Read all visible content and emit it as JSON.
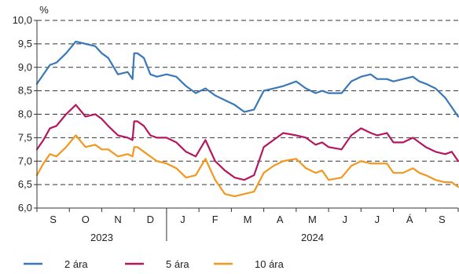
{
  "chart_data": {
    "type": "line",
    "unit": "%",
    "ylim": [
      6.0,
      10.0
    ],
    "yticks": [
      "6,0",
      "6,5",
      "7,0",
      "7,5",
      "8,0",
      "8,5",
      "9,0",
      "9,5",
      "10,0"
    ],
    "ytick_values": [
      6.0,
      6.5,
      7.0,
      7.5,
      8.0,
      8.5,
      9.0,
      9.5,
      10.0
    ],
    "grid": "dashed horizontal",
    "months": [
      "S",
      "O",
      "N",
      "D",
      "J",
      "F",
      "M",
      "A",
      "M",
      "J",
      "J",
      "Á",
      "S"
    ],
    "years": [
      {
        "label": "2023",
        "start_month": 0,
        "end_month": 3
      },
      {
        "label": "2024",
        "start_month": 4,
        "end_month": 12
      }
    ],
    "x_unit": "month index (0 = start of S 2023, 13 = end of S 2024)",
    "series": [
      {
        "name": "2 ára",
        "color": "#3a78b8",
        "x": [
          0,
          0.2,
          0.4,
          0.6,
          0.9,
          1.2,
          1.5,
          1.8,
          2.0,
          2.2,
          2.5,
          2.8,
          2.95,
          3.0,
          3.1,
          3.3,
          3.5,
          3.7,
          4.0,
          4.3,
          4.6,
          4.9,
          5.2,
          5.5,
          5.8,
          6.1,
          6.4,
          6.7,
          7.0,
          7.3,
          7.6,
          8.0,
          8.3,
          8.6,
          8.8,
          9.0,
          9.4,
          9.7,
          10.0,
          10.3,
          10.5,
          10.8,
          11.0,
          11.3,
          11.6,
          11.8,
          12.0,
          12.3,
          12.6,
          12.8,
          13.0
        ],
        "values": [
          8.65,
          8.85,
          9.05,
          9.1,
          9.3,
          9.55,
          9.5,
          9.45,
          9.3,
          9.2,
          8.85,
          8.9,
          8.75,
          9.3,
          9.3,
          9.2,
          8.85,
          8.8,
          8.85,
          8.8,
          8.6,
          8.45,
          8.55,
          8.4,
          8.3,
          8.2,
          8.05,
          8.1,
          8.5,
          8.55,
          8.6,
          8.7,
          8.55,
          8.45,
          8.5,
          8.45,
          8.45,
          8.7,
          8.8,
          8.85,
          8.75,
          8.75,
          8.7,
          8.75,
          8.8,
          8.7,
          8.65,
          8.55,
          8.35,
          8.15,
          7.95
        ]
      },
      {
        "name": "5 ára",
        "color": "#b5175e",
        "x": [
          0,
          0.2,
          0.4,
          0.6,
          0.9,
          1.2,
          1.5,
          1.8,
          2.0,
          2.2,
          2.5,
          2.8,
          2.95,
          3.0,
          3.1,
          3.3,
          3.5,
          3.7,
          4.0,
          4.3,
          4.6,
          4.9,
          5.2,
          5.5,
          5.8,
          6.1,
          6.4,
          6.7,
          7.0,
          7.3,
          7.6,
          8.0,
          8.3,
          8.6,
          8.8,
          9.0,
          9.4,
          9.7,
          10.0,
          10.3,
          10.5,
          10.8,
          11.0,
          11.3,
          11.6,
          11.8,
          12.0,
          12.3,
          12.6,
          12.8,
          13.0
        ],
        "values": [
          7.25,
          7.45,
          7.7,
          7.75,
          8.0,
          8.2,
          7.95,
          8.0,
          7.9,
          7.75,
          7.55,
          7.5,
          7.45,
          7.85,
          7.85,
          7.75,
          7.55,
          7.5,
          7.5,
          7.4,
          7.2,
          7.1,
          7.45,
          7.0,
          6.8,
          6.65,
          6.6,
          6.7,
          7.3,
          7.45,
          7.6,
          7.55,
          7.5,
          7.35,
          7.4,
          7.3,
          7.25,
          7.55,
          7.7,
          7.6,
          7.55,
          7.6,
          7.4,
          7.4,
          7.5,
          7.4,
          7.3,
          7.2,
          7.15,
          7.2,
          7.0
        ]
      },
      {
        "name": "10 ára",
        "color": "#f3971f",
        "x": [
          0,
          0.2,
          0.4,
          0.6,
          0.9,
          1.2,
          1.5,
          1.8,
          2.0,
          2.2,
          2.5,
          2.8,
          2.95,
          3.0,
          3.1,
          3.3,
          3.5,
          3.7,
          4.0,
          4.3,
          4.6,
          4.9,
          5.2,
          5.5,
          5.8,
          6.1,
          6.4,
          6.7,
          7.0,
          7.3,
          7.6,
          8.0,
          8.3,
          8.6,
          8.8,
          9.0,
          9.4,
          9.7,
          10.0,
          10.3,
          10.5,
          10.8,
          11.0,
          11.3,
          11.6,
          11.8,
          12.0,
          12.3,
          12.6,
          12.8,
          13.0
        ],
        "values": [
          6.7,
          6.95,
          7.15,
          7.1,
          7.3,
          7.55,
          7.3,
          7.35,
          7.25,
          7.25,
          7.1,
          7.15,
          7.1,
          7.3,
          7.3,
          7.2,
          7.1,
          7.0,
          6.95,
          6.85,
          6.65,
          6.7,
          7.05,
          6.6,
          6.3,
          6.25,
          6.3,
          6.35,
          6.75,
          6.9,
          7.0,
          7.05,
          6.85,
          6.75,
          6.8,
          6.6,
          6.65,
          6.9,
          7.0,
          6.95,
          6.95,
          6.95,
          6.75,
          6.75,
          6.85,
          6.75,
          6.7,
          6.6,
          6.55,
          6.55,
          6.45
        ]
      }
    ]
  }
}
